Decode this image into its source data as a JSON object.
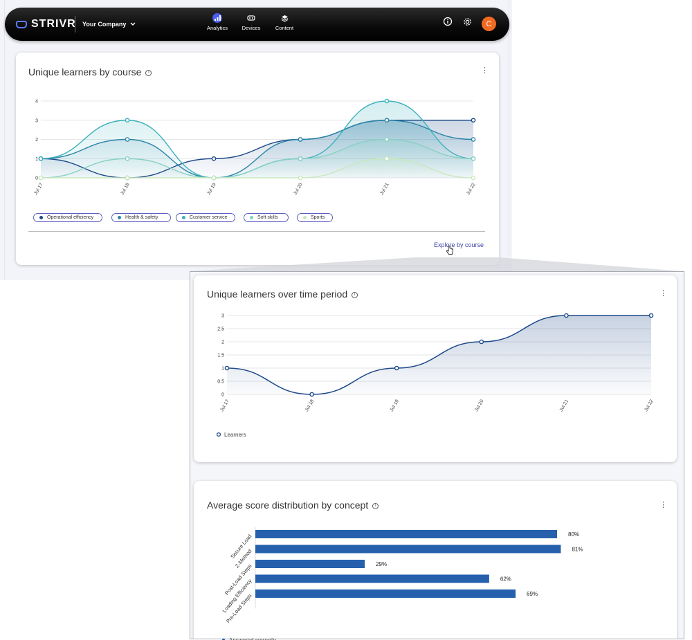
{
  "topbar": {
    "brand": "STRIVR",
    "company": "Your Company",
    "nav": [
      {
        "label": "Analytics",
        "icon": "analytics-icon",
        "active": true
      },
      {
        "label": "Devices",
        "icon": "headset-icon",
        "active": false
      },
      {
        "label": "Content",
        "icon": "layers-icon",
        "active": false
      }
    ],
    "avatar_initial": "C",
    "accent": "#4a5cf0",
    "avatar_color": "#f26a21"
  },
  "card1": {
    "title": "Unique learners by course",
    "link": "Explore by course",
    "chart_data": {
      "type": "area",
      "categories": [
        "Jul 17",
        "Jul 18",
        "Jul 19",
        "Jul 20",
        "Jul 21",
        "Jul 22"
      ],
      "ylim": [
        0,
        4
      ],
      "yticks": [
        0,
        1,
        2,
        3,
        4
      ],
      "series": [
        {
          "name": "Operational efficiency",
          "color": "#1e4a8a",
          "values": [
            1,
            0,
            1,
            2,
            3,
            3
          ]
        },
        {
          "name": "Health & safety",
          "color": "#2a85a8",
          "values": [
            1,
            2,
            0,
            2,
            3,
            2
          ]
        },
        {
          "name": "Customer service",
          "color": "#3ab0bb",
          "values": [
            1,
            3,
            0,
            1,
            4,
            1
          ]
        },
        {
          "name": "Soft skills",
          "color": "#88d0c4",
          "values": [
            0,
            1,
            0,
            1,
            2,
            1
          ]
        },
        {
          "name": "Sports",
          "color": "#c8e8be",
          "values": [
            0,
            0,
            0,
            0,
            1,
            0
          ]
        }
      ]
    }
  },
  "card2": {
    "title": "Unique learners over time period",
    "chart_data": {
      "type": "area",
      "categories": [
        "Jul 17",
        "Jul 18",
        "Jul 19",
        "Jul 20",
        "Jul 21",
        "Jul 22"
      ],
      "ylim": [
        0,
        3
      ],
      "yticks": [
        "0",
        "0.5",
        "1",
        "1.5",
        "2",
        "2.5",
        "3"
      ],
      "series": [
        {
          "name": "Learners",
          "color": "#1e4a8a",
          "values": [
            1,
            0,
            1,
            2,
            3,
            3
          ]
        }
      ]
    }
  },
  "card3": {
    "title": "Average score distribution by concept",
    "chart_data": {
      "type": "bar",
      "orientation": "horizontal",
      "categories": [
        "Secure Load",
        "Z-Method",
        "Post-Load Steps",
        "Loading Efficiency",
        "Pre-Load Steps"
      ],
      "values": [
        80,
        81,
        29,
        62,
        69
      ],
      "value_labels": [
        "80%",
        "81%",
        "29%",
        "62%",
        "69%"
      ],
      "xlim": [
        0,
        100
      ],
      "color": "#2660ad",
      "legend": "Answered correctly"
    }
  }
}
